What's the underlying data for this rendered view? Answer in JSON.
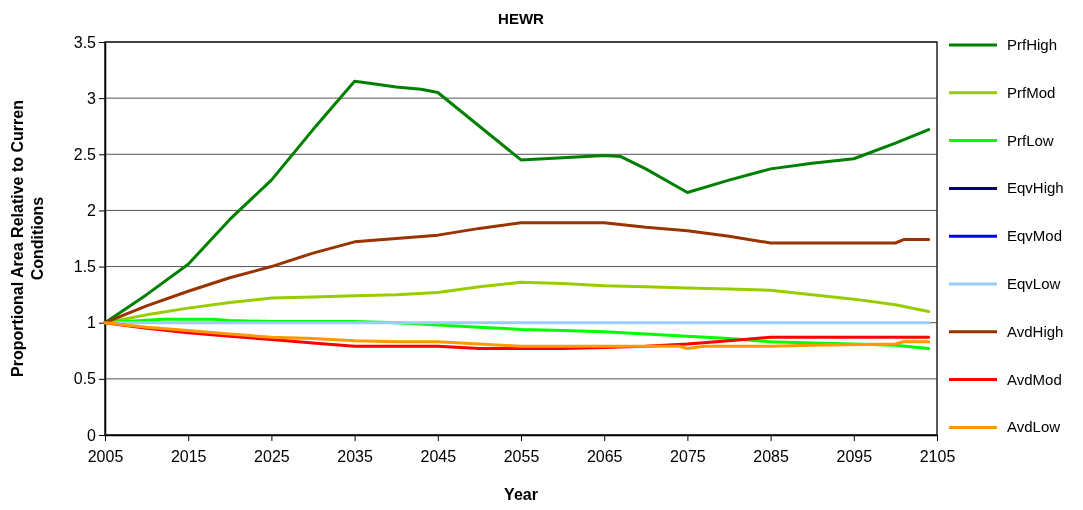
{
  "chart_data": {
    "type": "line",
    "title": "HEWR",
    "xlabel": "Year",
    "ylabel": "Proportional Area Relative to Curren Conditions",
    "xlim": [
      2005,
      2105
    ],
    "xticks": [
      2005,
      2015,
      2025,
      2035,
      2045,
      2055,
      2065,
      2075,
      2085,
      2095,
      2105
    ],
    "ylim": [
      0,
      3.5
    ],
    "yticks": [
      0,
      0.5,
      1,
      1.5,
      2,
      2.5,
      3,
      3.5
    ],
    "grid": "y",
    "legend": "right",
    "marker": "none",
    "line_style": "solid",
    "series": [
      {
        "name": "PrfHigh",
        "color": "#008000",
        "x": [
          2005,
          2010,
          2015,
          2020,
          2025,
          2030,
          2035,
          2037,
          2040,
          2043,
          2045,
          2050,
          2055,
          2060,
          2065,
          2067,
          2070,
          2075,
          2080,
          2085,
          2090,
          2095,
          2100,
          2104
        ],
        "values": [
          1.0,
          1.25,
          1.52,
          1.92,
          2.27,
          2.72,
          3.15,
          3.13,
          3.1,
          3.08,
          3.05,
          2.75,
          2.45,
          2.47,
          2.49,
          2.48,
          2.37,
          2.16,
          2.27,
          2.37,
          2.42,
          2.46,
          2.6,
          2.72
        ]
      },
      {
        "name": "PrfMod",
        "color": "#99cc00",
        "x": [
          2005,
          2010,
          2015,
          2020,
          2025,
          2030,
          2035,
          2040,
          2045,
          2050,
          2055,
          2060,
          2065,
          2070,
          2075,
          2080,
          2085,
          2090,
          2095,
          2100,
          2104
        ],
        "values": [
          1,
          1.07,
          1.13,
          1.18,
          1.22,
          1.23,
          1.24,
          1.25,
          1.27,
          1.32,
          1.36,
          1.35,
          1.33,
          1.32,
          1.31,
          1.3,
          1.29,
          1.25,
          1.21,
          1.16,
          1.1
        ]
      },
      {
        "name": "PrfLow",
        "color": "#00ff00",
        "x": [
          2005,
          2012,
          2018,
          2020,
          2025,
          2035,
          2040,
          2045,
          2050,
          2055,
          2060,
          2065,
          2070,
          2075,
          2080,
          2085,
          2090,
          2095,
          2100,
          2104
        ],
        "values": [
          1,
          1.03,
          1.03,
          1.02,
          1.01,
          1.01,
          1.0,
          0.98,
          0.96,
          0.94,
          0.93,
          0.92,
          0.9,
          0.88,
          0.86,
          0.83,
          0.82,
          0.81,
          0.8,
          0.77
        ]
      },
      {
        "name": "EqvHigh",
        "color": "#000080"
      },
      {
        "name": "EqvMod",
        "color": "#0000ff"
      },
      {
        "name": "EqvLow",
        "color": "#99ccff",
        "x": [
          2005,
          2104
        ],
        "values": [
          1,
          1
        ]
      },
      {
        "name": "AvdHigh",
        "color": "#993300",
        "x": [
          2005,
          2010,
          2015,
          2020,
          2025,
          2030,
          2035,
          2040,
          2045,
          2050,
          2055,
          2065,
          2070,
          2075,
          2080,
          2085,
          2090,
          2100,
          2101,
          2104
        ],
        "values": [
          1.0,
          1.15,
          1.28,
          1.4,
          1.5,
          1.62,
          1.72,
          1.75,
          1.78,
          1.84,
          1.89,
          1.89,
          1.85,
          1.82,
          1.77,
          1.71,
          1.71,
          1.71,
          1.74,
          1.74
        ]
      },
      {
        "name": "AvdMod",
        "color": "#ff0000",
        "x": [
          2005,
          2010,
          2015,
          2020,
          2025,
          2030,
          2035,
          2040,
          2045,
          2050,
          2055,
          2060,
          2065,
          2070,
          2075,
          2080,
          2085,
          2104
        ],
        "values": [
          1,
          0.95,
          0.91,
          0.88,
          0.85,
          0.82,
          0.79,
          0.79,
          0.79,
          0.77,
          0.77,
          0.77,
          0.78,
          0.79,
          0.81,
          0.84,
          0.87,
          0.87
        ]
      },
      {
        "name": "AvdLow",
        "color": "#ff9900",
        "x": [
          2005,
          2010,
          2015,
          2020,
          2025,
          2030,
          2035,
          2040,
          2045,
          2050,
          2055,
          2065,
          2074,
          2075,
          2077,
          2085,
          2090,
          2100,
          2101,
          2104
        ],
        "values": [
          1,
          0.96,
          0.93,
          0.9,
          0.87,
          0.86,
          0.84,
          0.83,
          0.83,
          0.81,
          0.79,
          0.79,
          0.79,
          0.77,
          0.79,
          0.79,
          0.8,
          0.81,
          0.83,
          0.83
        ]
      }
    ]
  }
}
